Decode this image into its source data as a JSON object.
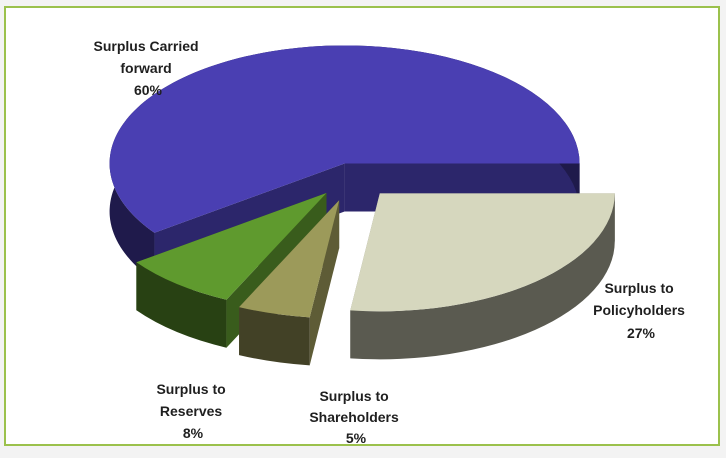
{
  "chart_data": {
    "type": "pie",
    "style": "3d-exploded",
    "title": "",
    "legend": "none",
    "slices": [
      {
        "label_lines": [
          "Surplus Carried",
          "forward"
        ],
        "value": 60,
        "value_text": "60%",
        "color": "#4a3fb2"
      },
      {
        "label_lines": [
          "Surplus to",
          "Policyholders"
        ],
        "value": 27,
        "value_text": "27%",
        "color": "#d6d7be"
      },
      {
        "label_lines": [
          "Surplus to",
          "Shareholders"
        ],
        "value": 5,
        "value_text": "5%",
        "color": "#9c9a5a"
      },
      {
        "label_lines": [
          "Surplus to",
          "Reserves"
        ],
        "value": 8,
        "value_text": "8%",
        "color": "#5f9a2e"
      }
    ]
  }
}
